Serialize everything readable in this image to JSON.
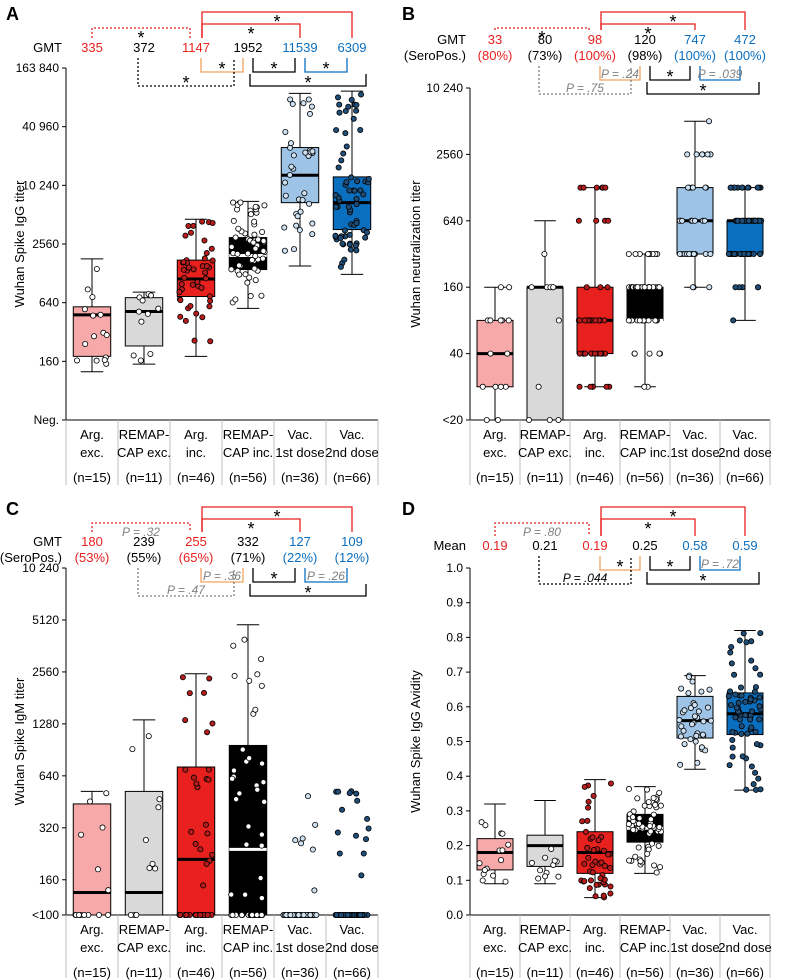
{
  "figure": {
    "groups": [
      "Arg. exc.",
      "REMAP-CAP exc.",
      "Arg. inc.",
      "REMAP-CAP inc.",
      "Vac. 1st dose",
      "Vac. 2nd dose"
    ],
    "group_label_lines": [
      [
        "Arg.",
        "exc."
      ],
      [
        "REMAP-",
        "CAP exc."
      ],
      [
        "Arg.",
        "inc."
      ],
      [
        "REMAP-",
        "CAP inc."
      ],
      [
        "Vac.",
        "1st dose"
      ],
      [
        "Vac.",
        "2nd dose"
      ]
    ],
    "n_labels": [
      "(n=15)",
      "(n=11)",
      "(n=46)",
      "(n=56)",
      "(n=36)",
      "(n=66)"
    ],
    "colors": {
      "red": "#e8201e",
      "red_light": "#f7a9a9",
      "gray_light": "#d9d9d9",
      "black": "#000000",
      "blue_light": "#9dc3e6",
      "blue": "#0b6fc0",
      "orange": "#f0a35e",
      "sig_gray": "#7f7f7f"
    }
  },
  "chart_data": [
    {
      "panel": "A",
      "type": "box",
      "scale": "log2",
      "ylabel": "Wuhan Spike IgG titer",
      "ylim": [
        40,
        163840
      ],
      "yticks": [
        {
          "v": 40,
          "label": "Neg."
        },
        {
          "v": 160,
          "label": "160"
        },
        {
          "v": 640,
          "label": "640"
        },
        {
          "v": 2560,
          "label": "2560"
        },
        {
          "v": 10240,
          "label": "10 240"
        },
        {
          "v": 40960,
          "label": "40 960"
        },
        {
          "v": 163840,
          "label": "163 840"
        }
      ],
      "header_label": [
        "GMT"
      ],
      "header_values": [
        [
          "335"
        ],
        [
          "372"
        ],
        [
          "1147"
        ],
        [
          "1952"
        ],
        [
          "11539"
        ],
        [
          "6309"
        ]
      ],
      "header_colors": [
        "red",
        "black",
        "red",
        "black",
        "blue",
        "blue"
      ],
      "boxes": [
        {
          "min": 125,
          "q1": 180,
          "median": 480,
          "q3": 580,
          "max": 1800
        },
        {
          "min": 150,
          "q1": 230,
          "median": 520,
          "q3": 720,
          "max": 820
        },
        {
          "min": 180,
          "q1": 740,
          "median": 1120,
          "q3": 1750,
          "max": 4600
        },
        {
          "min": 560,
          "q1": 1400,
          "median": 1950,
          "q3": 2980,
          "max": 7000
        },
        {
          "min": 1520,
          "q1": 6800,
          "median": 13000,
          "q3": 25000,
          "max": 90000
        },
        {
          "min": 1250,
          "q1": 3600,
          "median": 6800,
          "q3": 12500,
          "max": 95000
        }
      ],
      "brackets_above": [
        {
          "from": 0,
          "to": 2,
          "label": "*",
          "color": "red",
          "dashed": true
        },
        {
          "from": 2,
          "to": 5,
          "label": "*",
          "color": "red",
          "dashed": false
        },
        {
          "from": 2,
          "to": 4,
          "label": "*",
          "color": "red",
          "dashed": false
        }
      ],
      "brackets_below": [
        {
          "from": 2,
          "to": 3,
          "label": "*",
          "color": "orange",
          "dashed": false
        },
        {
          "from": 4,
          "to": 5,
          "label": "*",
          "color": "blue",
          "dashed": false
        },
        {
          "from": 3,
          "to": 4,
          "label": "*",
          "color": "black",
          "dashed": false
        },
        {
          "from": 1,
          "to": 3,
          "label": "*",
          "color": "black",
          "dashed": true
        },
        {
          "from": 3,
          "to": 5,
          "label": "*",
          "color": "black",
          "dashed": false
        }
      ]
    },
    {
      "panel": "B",
      "type": "box",
      "scale": "log2",
      "ylabel": "Wuhan neutralization titer",
      "ylim": [
        10,
        10240
      ],
      "yticks": [
        {
          "v": 10,
          "label": "<20"
        },
        {
          "v": 40,
          "label": "40"
        },
        {
          "v": 160,
          "label": "160"
        },
        {
          "v": 640,
          "label": "640"
        },
        {
          "v": 2560,
          "label": "2560"
        },
        {
          "v": 10240,
          "label": "10 240"
        }
      ],
      "header_label": [
        "GMT",
        "(SeroPos.)"
      ],
      "header_values": [
        [
          "33",
          "(80%)"
        ],
        [
          "80",
          "(73%)"
        ],
        [
          "98",
          "(100%)"
        ],
        [
          "120",
          "(98%)"
        ],
        [
          "747",
          "(100%)"
        ],
        [
          "472",
          "(100%)"
        ]
      ],
      "header_colors": [
        "red",
        "black",
        "red",
        "black",
        "blue",
        "blue"
      ],
      "boxes": [
        {
          "min": 10,
          "q1": 20,
          "median": 40,
          "q3": 80,
          "max": 160
        },
        {
          "min": 10,
          "q1": 10,
          "median": 160,
          "q3": 160,
          "max": 640
        },
        {
          "min": 20,
          "q1": 40,
          "median": 80,
          "q3": 160,
          "max": 1280
        },
        {
          "min": 20,
          "q1": 80,
          "median": 80,
          "q3": 160,
          "max": 320
        },
        {
          "min": 160,
          "q1": 320,
          "median": 640,
          "q3": 1280,
          "max": 5120
        },
        {
          "min": 80,
          "q1": 320,
          "median": 640,
          "q3": 640,
          "max": 1280
        }
      ],
      "brackets_above": [
        {
          "from": 0,
          "to": 2,
          "label": "*",
          "color": "red",
          "dashed": true
        },
        {
          "from": 2,
          "to": 5,
          "label": "*",
          "color": "red",
          "dashed": false
        },
        {
          "from": 2,
          "to": 4,
          "label": "*",
          "color": "red",
          "dashed": false
        }
      ],
      "brackets_below": [
        {
          "from": 2,
          "to": 3,
          "label": "P = .24",
          "color": "orange",
          "dashed": false
        },
        {
          "from": 3,
          "to": 4,
          "label": "*",
          "color": "black",
          "dashed": false
        },
        {
          "from": 4,
          "to": 5,
          "label": "P = .039",
          "color": "blue",
          "dashed": false
        },
        {
          "from": 1,
          "to": 3,
          "label": "P = .75",
          "color": "sig_gray",
          "dashed": true
        },
        {
          "from": 3,
          "to": 5,
          "label": "*",
          "color": "black",
          "dashed": false
        }
      ]
    },
    {
      "panel": "C",
      "type": "box",
      "scale": "log2",
      "ylabel": "Wuhan Spike IgM titer",
      "ylim": [
        100,
        10240
      ],
      "yticks": [
        {
          "v": 100,
          "label": "<100"
        },
        {
          "v": 160,
          "label": "160"
        },
        {
          "v": 320,
          "label": "320"
        },
        {
          "v": 640,
          "label": "640"
        },
        {
          "v": 1280,
          "label": "1280"
        },
        {
          "v": 2560,
          "label": "2560"
        },
        {
          "v": 5120,
          "label": "5120"
        },
        {
          "v": 10240,
          "label": "10 240"
        }
      ],
      "header_label": [
        "GMT",
        "(SeroPos.)"
      ],
      "header_values": [
        [
          "180",
          "(53%)"
        ],
        [
          "239",
          "(55%)"
        ],
        [
          "255",
          "(65%)"
        ],
        [
          "332",
          "(71%)"
        ],
        [
          "127",
          "(22%)"
        ],
        [
          "109",
          "(12%)"
        ]
      ],
      "header_colors": [
        "red",
        "black",
        "red",
        "black",
        "blue",
        "blue"
      ],
      "boxes": [
        {
          "min": 100,
          "q1": 100,
          "median": 135,
          "q3": 440,
          "max": 520
        },
        {
          "min": 100,
          "q1": 100,
          "median": 135,
          "q3": 520,
          "max": 1350
        },
        {
          "min": 100,
          "q1": 100,
          "median": 210,
          "q3": 720,
          "max": 2500
        },
        {
          "min": 100,
          "q1": 100,
          "median": 240,
          "q3": 960,
          "max": 4800
        },
        null,
        null
      ],
      "brackets_above": [
        {
          "from": 0,
          "to": 2,
          "label": "P = .32",
          "color": "red",
          "dashed": true
        },
        {
          "from": 2,
          "to": 5,
          "label": "*",
          "color": "red",
          "dashed": false
        },
        {
          "from": 2,
          "to": 4,
          "label": "*",
          "color": "red",
          "dashed": false
        }
      ],
      "brackets_below": [
        {
          "from": 2,
          "to": 3,
          "label": "P = .36",
          "color": "orange",
          "dashed": false
        },
        {
          "from": 3,
          "to": 4,
          "label": "*",
          "color": "black",
          "dashed": false
        },
        {
          "from": 4,
          "to": 5,
          "label": "P = .26",
          "color": "blue",
          "dashed": false
        },
        {
          "from": 1,
          "to": 3,
          "label": "P = .47",
          "color": "sig_gray",
          "dashed": true
        },
        {
          "from": 3,
          "to": 5,
          "label": "*",
          "color": "black",
          "dashed": false
        }
      ]
    },
    {
      "panel": "D",
      "type": "box",
      "scale": "linear",
      "ylabel": "Wuhan Spike IgG Avidity",
      "ylim": [
        0,
        1
      ],
      "yticks": [
        {
          "v": 0,
          "label": "0.0"
        },
        {
          "v": 0.1,
          "label": "0.1"
        },
        {
          "v": 0.2,
          "label": "0.2"
        },
        {
          "v": 0.3,
          "label": "0.3"
        },
        {
          "v": 0.4,
          "label": "0.4"
        },
        {
          "v": 0.5,
          "label": "0.5"
        },
        {
          "v": 0.6,
          "label": "0.6"
        },
        {
          "v": 0.7,
          "label": "0.7"
        },
        {
          "v": 0.8,
          "label": "0.8"
        },
        {
          "v": 0.9,
          "label": "0.9"
        },
        {
          "v": 1.0,
          "label": "1.0"
        }
      ],
      "header_label": [
        "Mean"
      ],
      "header_values": [
        [
          "0.19"
        ],
        [
          "0.21"
        ],
        [
          "0.19"
        ],
        [
          "0.25"
        ],
        [
          "0.58"
        ],
        [
          "0.59"
        ]
      ],
      "header_colors": [
        "red",
        "black",
        "red",
        "black",
        "blue",
        "blue"
      ],
      "boxes": [
        {
          "min": 0.09,
          "q1": 0.13,
          "median": 0.18,
          "q3": 0.22,
          "max": 0.32
        },
        {
          "min": 0.09,
          "q1": 0.14,
          "median": 0.2,
          "q3": 0.23,
          "max": 0.33
        },
        {
          "min": 0.05,
          "q1": 0.12,
          "median": 0.18,
          "q3": 0.24,
          "max": 0.39
        },
        {
          "min": 0.12,
          "q1": 0.21,
          "median": 0.25,
          "q3": 0.29,
          "max": 0.37
        },
        {
          "min": 0.42,
          "q1": 0.51,
          "median": 0.56,
          "q3": 0.63,
          "max": 0.69
        },
        {
          "min": 0.36,
          "q1": 0.52,
          "median": 0.58,
          "q3": 0.64,
          "max": 0.82
        }
      ],
      "brackets_above": [
        {
          "from": 0,
          "to": 2,
          "label": "P = .80",
          "color": "red",
          "dashed": true
        },
        {
          "from": 2,
          "to": 5,
          "label": "*",
          "color": "red",
          "dashed": false
        },
        {
          "from": 2,
          "to": 4,
          "label": "*",
          "color": "red",
          "dashed": false
        }
      ],
      "brackets_below": [
        {
          "from": 2,
          "to": 3,
          "label": "*",
          "color": "orange",
          "dashed": false
        },
        {
          "from": 3,
          "to": 4,
          "label": "*",
          "color": "black",
          "dashed": false
        },
        {
          "from": 4,
          "to": 5,
          "label": "P = .72",
          "color": "blue",
          "dashed": false
        },
        {
          "from": 1,
          "to": 3,
          "label": "P = .044",
          "color": "black",
          "dashed": true
        },
        {
          "from": 3,
          "to": 5,
          "label": "*",
          "color": "black",
          "dashed": false
        }
      ]
    }
  ]
}
